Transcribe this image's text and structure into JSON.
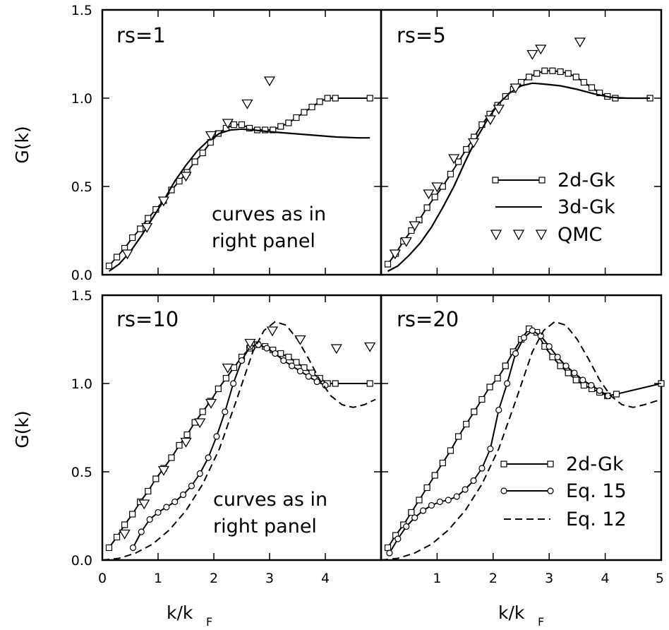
{
  "figure": {
    "ylabel": "G(k)",
    "xlabel_main": "k/k",
    "xlabel_sub": "F"
  },
  "chart_data": [
    {
      "type": "line",
      "title": "rs=1",
      "annotation": [
        "curves as in",
        "right panel"
      ],
      "xlim": [
        0,
        5
      ],
      "ylim": [
        0,
        1.5
      ],
      "yticks": [
        "0.0",
        "0.5",
        "1.0",
        "1.5"
      ],
      "xticks": [],
      "series": [
        {
          "style": "square-line",
          "x": [
            0.12,
            0.26,
            0.4,
            0.54,
            0.68,
            0.82,
            0.96,
            1.1,
            1.24,
            1.38,
            1.52,
            1.66,
            1.8,
            1.94,
            2.08,
            2.22,
            2.36,
            2.5,
            2.64,
            2.78,
            2.92,
            3.06,
            3.2,
            3.34,
            3.48,
            3.62,
            3.76,
            3.9,
            4.04,
            4.18,
            4.8
          ],
          "y": [
            0.05,
            0.1,
            0.15,
            0.21,
            0.26,
            0.32,
            0.37,
            0.42,
            0.48,
            0.53,
            0.58,
            0.64,
            0.69,
            0.75,
            0.8,
            0.83,
            0.85,
            0.85,
            0.83,
            0.82,
            0.82,
            0.82,
            0.84,
            0.86,
            0.89,
            0.92,
            0.95,
            0.98,
            1.0,
            1.0,
            1.0
          ]
        },
        {
          "style": "solid",
          "x": [
            0.12,
            0.3,
            0.5,
            0.7,
            0.9,
            1.1,
            1.3,
            1.5,
            1.7,
            1.9,
            2.1,
            2.3,
            2.5,
            2.7,
            3.0,
            3.4,
            3.8,
            4.2,
            4.6,
            4.8
          ],
          "y": [
            0.02,
            0.06,
            0.13,
            0.22,
            0.32,
            0.42,
            0.53,
            0.62,
            0.7,
            0.76,
            0.8,
            0.82,
            0.825,
            0.82,
            0.81,
            0.8,
            0.79,
            0.78,
            0.775,
            0.775
          ]
        },
        {
          "style": "triangle",
          "x": [
            0.45,
            0.8,
            1.1,
            1.5,
            1.95,
            2.25,
            2.6,
            3.0
          ],
          "y": [
            0.12,
            0.27,
            0.42,
            0.56,
            0.79,
            0.86,
            0.97,
            1.1
          ]
        }
      ]
    },
    {
      "type": "line",
      "title": "rs=5",
      "xlim": [
        0,
        5
      ],
      "ylim": [
        0,
        1.5
      ],
      "yticks": [
        "0.0",
        "0.5",
        "1.0",
        "1.5"
      ],
      "xticks": [],
      "legend": [
        {
          "label": "2d-Gk",
          "style": "square-line"
        },
        {
          "label": "3d-Gk",
          "style": "solid"
        },
        {
          "label": "QMC",
          "style": "triangle"
        }
      ],
      "series": [
        {
          "style": "square-line",
          "x": [
            0.12,
            0.26,
            0.4,
            0.54,
            0.68,
            0.82,
            0.96,
            1.1,
            1.24,
            1.38,
            1.52,
            1.66,
            1.8,
            1.94,
            2.08,
            2.22,
            2.36,
            2.5,
            2.64,
            2.78,
            2.92,
            3.06,
            3.2,
            3.34,
            3.48,
            3.62,
            3.76,
            3.9,
            4.04,
            4.18,
            4.8
          ],
          "y": [
            0.06,
            0.12,
            0.19,
            0.25,
            0.31,
            0.38,
            0.44,
            0.5,
            0.57,
            0.64,
            0.71,
            0.78,
            0.85,
            0.91,
            0.96,
            1.01,
            1.05,
            1.09,
            1.12,
            1.14,
            1.155,
            1.155,
            1.15,
            1.14,
            1.12,
            1.09,
            1.06,
            1.03,
            1.01,
            1.0,
            1.0
          ]
        },
        {
          "style": "solid",
          "x": [
            0.12,
            0.3,
            0.5,
            0.7,
            0.9,
            1.1,
            1.3,
            1.5,
            1.7,
            1.9,
            2.1,
            2.3,
            2.5,
            2.7,
            2.9,
            3.2,
            3.5,
            3.8,
            4.1,
            4.4,
            4.8
          ],
          "y": [
            0.02,
            0.05,
            0.11,
            0.18,
            0.27,
            0.38,
            0.5,
            0.64,
            0.77,
            0.88,
            0.97,
            1.03,
            1.07,
            1.085,
            1.08,
            1.07,
            1.05,
            1.025,
            1.005,
            1.0,
            1.0
          ]
        },
        {
          "style": "triangle",
          "x": [
            0.25,
            0.45,
            0.6,
            0.85,
            1.0,
            1.3,
            1.65,
            1.95,
            2.1,
            2.4,
            2.7,
            2.85,
            3.55
          ],
          "y": [
            0.12,
            0.19,
            0.28,
            0.46,
            0.5,
            0.66,
            0.75,
            0.88,
            0.94,
            1.06,
            1.25,
            1.28,
            1.32
          ]
        }
      ]
    },
    {
      "type": "line",
      "title": "rs=10",
      "annotation": [
        "curves as in",
        "right panel"
      ],
      "xlim": [
        0,
        5
      ],
      "ylim": [
        0,
        1.5
      ],
      "yticks": [
        "0.0",
        "0.5",
        "1.0",
        "1.5"
      ],
      "xticks": [
        "0",
        "1",
        "2",
        "3",
        "4"
      ],
      "series": [
        {
          "style": "square-line",
          "x": [
            0.12,
            0.26,
            0.4,
            0.54,
            0.68,
            0.82,
            0.96,
            1.1,
            1.24,
            1.38,
            1.52,
            1.66,
            1.8,
            1.94,
            2.08,
            2.22,
            2.36,
            2.5,
            2.64,
            2.78,
            2.92,
            3.06,
            3.2,
            3.34,
            3.48,
            3.62,
            3.76,
            3.9,
            4.04,
            4.18,
            4.8
          ],
          "y": [
            0.07,
            0.13,
            0.2,
            0.26,
            0.33,
            0.39,
            0.46,
            0.52,
            0.58,
            0.65,
            0.71,
            0.78,
            0.84,
            0.9,
            0.97,
            1.03,
            1.09,
            1.15,
            1.2,
            1.22,
            1.21,
            1.19,
            1.17,
            1.15,
            1.12,
            1.09,
            1.06,
            1.03,
            1.0,
            1.0,
            1.0
          ]
        },
        {
          "style": "circle-line",
          "x": [
            0.55,
            0.7,
            0.85,
            1.0,
            1.15,
            1.3,
            1.45,
            1.6,
            1.75,
            1.9,
            2.05,
            2.2,
            2.35,
            2.5,
            2.65,
            2.8,
            2.95,
            3.1,
            3.25,
            3.4,
            3.55,
            3.7,
            3.85,
            4.0
          ],
          "y": [
            0.07,
            0.16,
            0.23,
            0.27,
            0.3,
            0.33,
            0.37,
            0.42,
            0.49,
            0.58,
            0.7,
            0.84,
            1.0,
            1.13,
            1.21,
            1.22,
            1.2,
            1.17,
            1.13,
            1.1,
            1.07,
            1.04,
            1.01,
            0.99
          ]
        },
        {
          "style": "dashed",
          "x": [
            0.0,
            0.3,
            0.6,
            0.9,
            1.2,
            1.5,
            1.8,
            2.1,
            2.4,
            2.7,
            2.9,
            3.1,
            3.3,
            3.5,
            3.7,
            3.9,
            4.1,
            4.3,
            4.5,
            4.7,
            4.9
          ],
          "y": [
            0.0,
            0.01,
            0.04,
            0.09,
            0.17,
            0.28,
            0.43,
            0.63,
            0.9,
            1.18,
            1.3,
            1.35,
            1.33,
            1.25,
            1.14,
            1.02,
            0.93,
            0.88,
            0.865,
            0.88,
            0.91
          ]
        },
        {
          "style": "triangle",
          "x": [
            0.4,
            0.75,
            1.1,
            1.5,
            1.75,
            1.95,
            2.25,
            2.65,
            3.05,
            3.55,
            4.2,
            4.8
          ],
          "y": [
            0.15,
            0.32,
            0.51,
            0.67,
            0.78,
            0.89,
            1.09,
            1.23,
            1.3,
            1.25,
            1.2,
            1.21
          ]
        }
      ]
    },
    {
      "type": "line",
      "title": "rs=20",
      "xlim": [
        0,
        5
      ],
      "ylim": [
        0,
        1.5
      ],
      "yticks": [
        "0.0",
        "0.5",
        "1.0",
        "1.5"
      ],
      "xticks": [
        "1",
        "2",
        "3",
        "4",
        "5"
      ],
      "legend": [
        {
          "label": "2d-Gk",
          "style": "square-line"
        },
        {
          "label": "Eq. 15",
          "style": "circle-line"
        },
        {
          "label": "Eq. 12",
          "style": "dashed"
        }
      ],
      "series": [
        {
          "style": "square-line",
          "x": [
            0.12,
            0.26,
            0.4,
            0.54,
            0.68,
            0.82,
            0.96,
            1.1,
            1.24,
            1.38,
            1.52,
            1.66,
            1.8,
            1.94,
            2.08,
            2.22,
            2.36,
            2.5,
            2.64,
            2.78,
            2.92,
            3.06,
            3.2,
            3.34,
            3.48,
            3.62,
            3.76,
            3.9,
            4.04,
            4.2,
            5.0
          ],
          "y": [
            0.07,
            0.14,
            0.2,
            0.27,
            0.34,
            0.41,
            0.48,
            0.55,
            0.62,
            0.7,
            0.77,
            0.84,
            0.91,
            0.98,
            1.03,
            1.1,
            1.18,
            1.25,
            1.31,
            1.29,
            1.21,
            1.15,
            1.1,
            1.06,
            1.02,
            0.99,
            0.97,
            0.95,
            0.93,
            0.94,
            1.0
          ]
        },
        {
          "style": "circle-line",
          "x": [
            0.15,
            0.3,
            0.45,
            0.6,
            0.75,
            0.9,
            1.05,
            1.2,
            1.35,
            1.5,
            1.65,
            1.8,
            1.95,
            2.1,
            2.25,
            2.4,
            2.55,
            2.7,
            2.85,
            3.0,
            3.15,
            3.3,
            3.45,
            3.6,
            3.75,
            3.9,
            4.05
          ],
          "y": [
            0.04,
            0.12,
            0.19,
            0.24,
            0.28,
            0.31,
            0.33,
            0.34,
            0.36,
            0.4,
            0.45,
            0.52,
            0.63,
            0.85,
            1.0,
            1.17,
            1.26,
            1.3,
            1.27,
            1.21,
            1.15,
            1.1,
            1.06,
            1.02,
            0.99,
            0.96,
            0.93
          ]
        },
        {
          "style": "dashed",
          "x": [
            0.0,
            0.3,
            0.6,
            0.9,
            1.2,
            1.5,
            1.8,
            2.1,
            2.4,
            2.7,
            2.9,
            3.1,
            3.3,
            3.5,
            3.7,
            3.9,
            4.1,
            4.3,
            4.5,
            4.7,
            5.0
          ],
          "y": [
            0.0,
            0.01,
            0.04,
            0.09,
            0.17,
            0.28,
            0.43,
            0.63,
            0.9,
            1.18,
            1.3,
            1.35,
            1.33,
            1.25,
            1.14,
            1.02,
            0.93,
            0.88,
            0.865,
            0.88,
            0.91
          ]
        }
      ]
    }
  ]
}
